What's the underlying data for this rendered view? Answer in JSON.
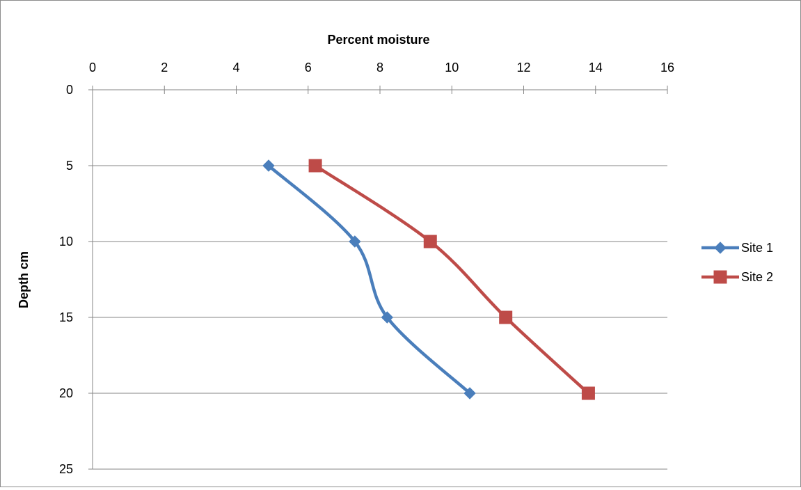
{
  "chart_data": {
    "type": "line",
    "xlabel": "Percent moisture",
    "ylabel": "Depth cm",
    "x_axis_position": "top",
    "y_axis_reversed": true,
    "xlim": [
      0,
      16
    ],
    "ylim": [
      0,
      25
    ],
    "x_ticks": [
      0,
      2,
      4,
      6,
      8,
      10,
      12,
      14,
      16
    ],
    "y_ticks": [
      0,
      5,
      10,
      15,
      20,
      25
    ],
    "grid": "horizontal major gridlines",
    "legend_position": "right",
    "smoothed_lines": true,
    "series": [
      {
        "name": "Site 1",
        "color": "#4a7ebb",
        "marker": "diamond",
        "points": [
          {
            "moisture": 4.9,
            "depth": 5
          },
          {
            "moisture": 7.3,
            "depth": 10
          },
          {
            "moisture": 8.2,
            "depth": 15
          },
          {
            "moisture": 10.5,
            "depth": 20
          }
        ]
      },
      {
        "name": "Site 2",
        "color": "#be4b48",
        "marker": "square",
        "points": [
          {
            "moisture": 6.2,
            "depth": 5
          },
          {
            "moisture": 9.4,
            "depth": 10
          },
          {
            "moisture": 11.5,
            "depth": 15
          },
          {
            "moisture": 13.8,
            "depth": 20
          }
        ]
      }
    ]
  }
}
